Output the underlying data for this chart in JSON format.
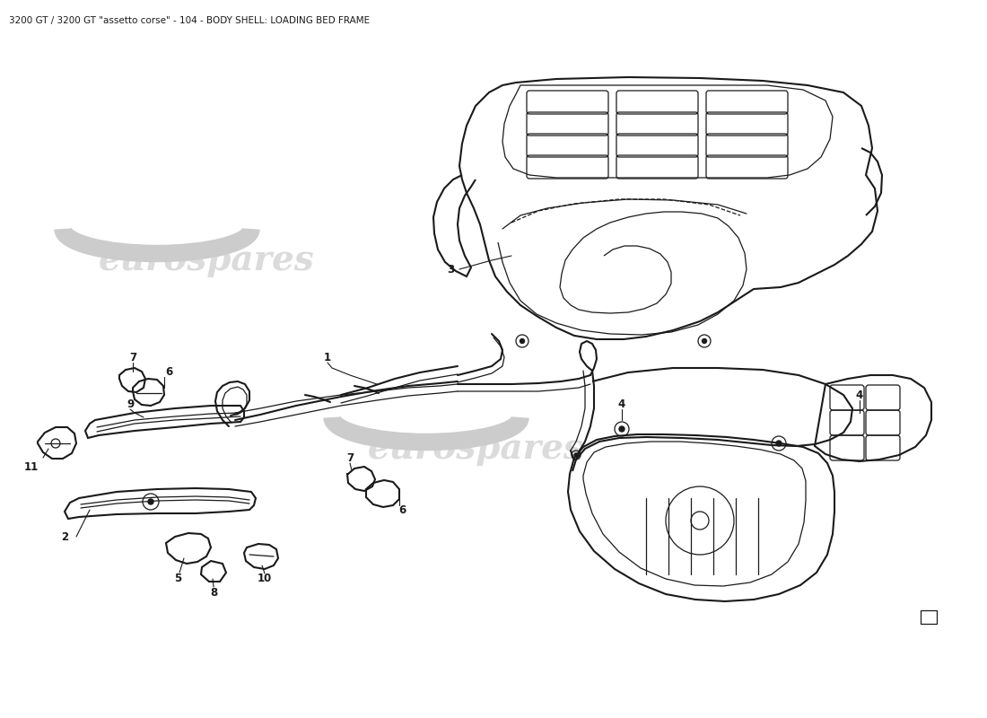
{
  "title": "3200 GT / 3200 GT \"assetto corse\" - 104 - BODY SHELL: LOADING BED FRAME",
  "title_fontsize": 7.5,
  "bg_color": "#ffffff",
  "line_color": "#1a1a1a",
  "watermark_color": "#cccccc",
  "watermark_text": "eurospares",
  "figure_width": 11.0,
  "figure_height": 8.0,
  "dpi": 100
}
